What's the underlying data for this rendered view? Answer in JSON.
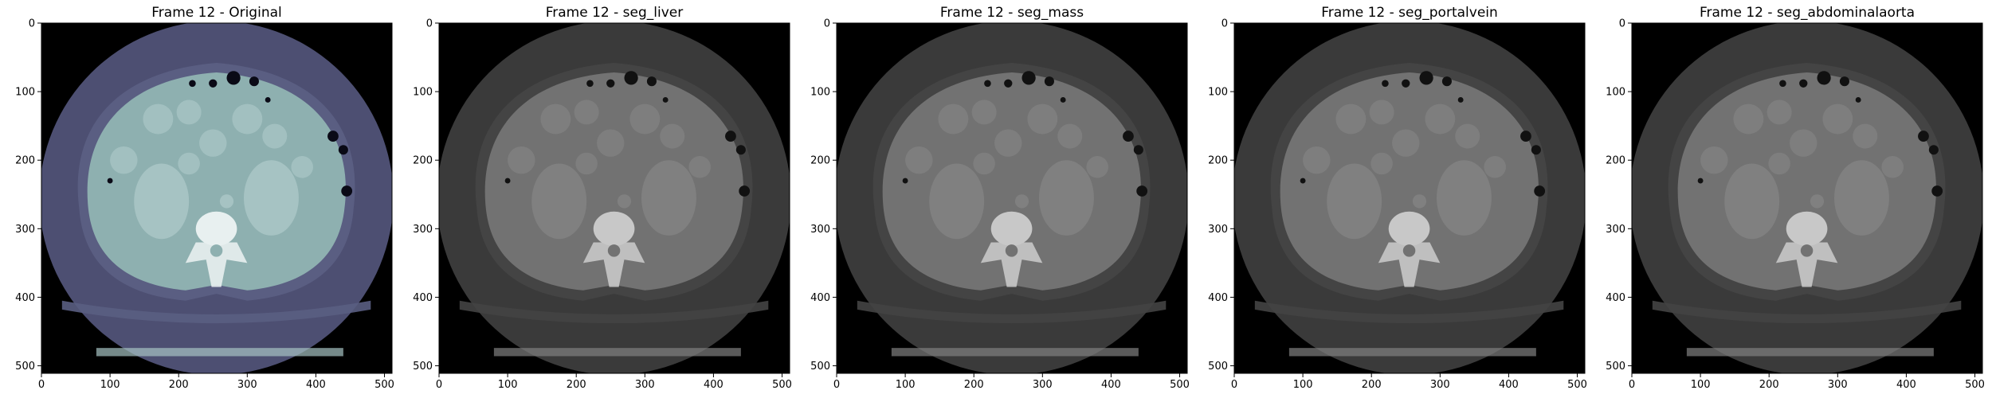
{
  "figure": {
    "panels": [
      {
        "title": "Frame 12 - Original",
        "colormap": "bone",
        "colors": {
          "outside": "#000000",
          "body": "#4d4f72",
          "fat": "#5a5e82",
          "organ": "#8eb0b0",
          "organ_light": "#a6c3c3",
          "bone": "#e8f0f0",
          "gas": "#0a0a16"
        }
      },
      {
        "title": "Frame 12 - seg_liver",
        "colormap": "gray",
        "colors": {
          "outside": "#000000",
          "body": "#3a3a3a",
          "fat": "#444444",
          "organ": "#727272",
          "organ_light": "#808080",
          "bone": "#c8c8c8",
          "gas": "#111111"
        }
      },
      {
        "title": "Frame 12 - seg_mass",
        "colormap": "gray",
        "colors": {
          "outside": "#000000",
          "body": "#3a3a3a",
          "fat": "#444444",
          "organ": "#727272",
          "organ_light": "#808080",
          "bone": "#c8c8c8",
          "gas": "#111111"
        }
      },
      {
        "title": "Frame 12 - seg_portalvein",
        "colormap": "gray",
        "colors": {
          "outside": "#000000",
          "body": "#3a3a3a",
          "fat": "#444444",
          "organ": "#727272",
          "organ_light": "#808080",
          "bone": "#c8c8c8",
          "gas": "#111111"
        }
      },
      {
        "title": "Frame 12 - seg_abdominalaorta",
        "colormap": "gray",
        "colors": {
          "outside": "#000000",
          "body": "#3a3a3a",
          "fat": "#444444",
          "organ": "#727272",
          "organ_light": "#808080",
          "bone": "#c8c8c8",
          "gas": "#111111"
        }
      }
    ],
    "axes": {
      "xlim": [
        0,
        511
      ],
      "ylim": [
        511,
        0
      ],
      "xticks": [
        0,
        100,
        200,
        300,
        400,
        500
      ],
      "yticks": [
        0,
        100,
        200,
        300,
        400,
        500
      ],
      "xtick_labels": [
        "0",
        "100",
        "200",
        "300",
        "400",
        "500"
      ],
      "ytick_labels": [
        "0",
        "100",
        "200",
        "300",
        "400",
        "500"
      ]
    }
  }
}
